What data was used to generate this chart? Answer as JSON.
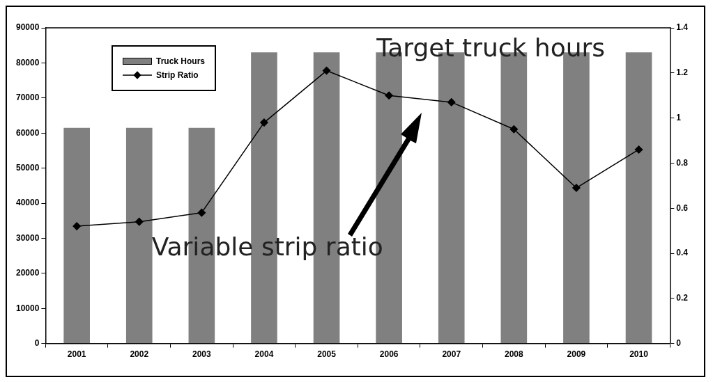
{
  "chart_data": {
    "type": "bar",
    "categories": [
      "2001",
      "2002",
      "2003",
      "2004",
      "2005",
      "2006",
      "2007",
      "2008",
      "2009",
      "2010"
    ],
    "series": [
      {
        "name": "Truck Hours",
        "color": "#808080",
        "values": [
          61500,
          61500,
          61500,
          83000,
          83000,
          83000,
          83000,
          83000,
          83000,
          83000
        ]
      },
      {
        "name": "Strip Ratio",
        "type": "line",
        "axis": "y2",
        "color": "#000000",
        "values": [
          0.52,
          0.54,
          0.58,
          0.98,
          1.21,
          1.1,
          1.07,
          0.95,
          0.69,
          0.86
        ]
      }
    ],
    "ylim": [
      0,
      90000
    ],
    "yticks": [
      0,
      10000,
      20000,
      30000,
      40000,
      50000,
      60000,
      70000,
      80000,
      90000
    ],
    "y2lim": [
      0,
      1.4
    ],
    "y2ticks": [
      0,
      0.2,
      0.4,
      0.6,
      0.8,
      1,
      1.2,
      1.4
    ],
    "annotations": [
      "Target truck hours",
      "Variable strip ratio"
    ],
    "legend": "top left",
    "grid": false,
    "marker": "diamond",
    "line_style": "solid"
  }
}
